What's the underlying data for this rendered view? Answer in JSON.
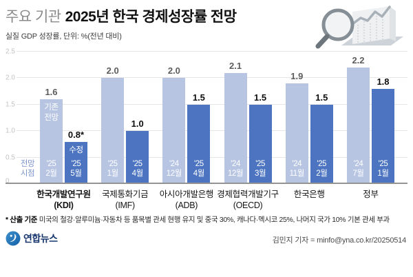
{
  "header": {
    "title_prefix": "주요 기관",
    "title_main": "2025년 한국 경제성장률 전망",
    "subtitle": "실질 GDP 성장률, 단위: %(전년 대비)"
  },
  "chart_data": {
    "type": "bar",
    "title": "주요 기관 2025년 한국 경제성장률 전망",
    "subtitle": "실질 GDP 성장률, 단위: %(전년 대비)",
    "ylim": [
      0,
      2.5
    ],
    "y_ticks": [
      0,
      0.5,
      1.0,
      1.5,
      2.0,
      2.5
    ],
    "grid": true,
    "axis_note_lines": [
      "전망",
      "시점"
    ],
    "legend": {
      "previous": "기존 전망",
      "revised": "수정"
    },
    "colors": {
      "previous": "#b7c5e3",
      "revised": "#4c74c0",
      "axis_note": "#7b95cc",
      "value_light": "#5c5c5c",
      "value_dark": "#0d0d0d"
    },
    "groups": [
      {
        "institution": "한국개발연구원",
        "abbr": "(KDI)",
        "highlight": true,
        "bars": [
          {
            "style": "previous",
            "value": 1.6,
            "value_label": "1.6",
            "tag_lines": [
              "기존",
              "전망"
            ],
            "date_lines": [
              "'25",
              "2월"
            ]
          },
          {
            "style": "revised",
            "value": 0.8,
            "value_label": "0.8*",
            "tag_lines": [
              "수정"
            ],
            "date_lines": [
              "'25",
              "5월"
            ]
          }
        ]
      },
      {
        "institution": "국제통화기금",
        "abbr": "(IMF)",
        "highlight": false,
        "bars": [
          {
            "style": "previous",
            "value": 2.0,
            "value_label": "2.0",
            "date_lines": [
              "'25",
              "1월"
            ]
          },
          {
            "style": "revised",
            "value": 1.0,
            "value_label": "1.0",
            "date_lines": [
              "'25",
              "4월"
            ]
          }
        ]
      },
      {
        "institution": "아시아개발은행",
        "abbr": "(ADB)",
        "highlight": false,
        "bars": [
          {
            "style": "previous",
            "value": 2.0,
            "value_label": "2.0",
            "date_lines": [
              "'24",
              "12월"
            ]
          },
          {
            "style": "revised",
            "value": 1.5,
            "value_label": "1.5",
            "date_lines": [
              "'25",
              "4월"
            ]
          }
        ]
      },
      {
        "institution": "경제협력개발기구",
        "abbr": "(OECD)",
        "highlight": false,
        "bars": [
          {
            "style": "previous",
            "value": 2.1,
            "value_label": "2.1",
            "date_lines": [
              "'24",
              "12월"
            ]
          },
          {
            "style": "revised",
            "value": 1.5,
            "value_label": "1.5",
            "date_lines": [
              "'25",
              "3월"
            ]
          }
        ]
      },
      {
        "institution": "한국은행",
        "abbr": "",
        "highlight": false,
        "bars": [
          {
            "style": "previous",
            "value": 1.9,
            "value_label": "1.9",
            "date_lines": [
              "'24",
              "11월"
            ]
          },
          {
            "style": "revised",
            "value": 1.5,
            "value_label": "1.5",
            "date_lines": [
              "'25",
              "2월"
            ]
          }
        ]
      },
      {
        "institution": "정부",
        "abbr": "",
        "highlight": false,
        "bars": [
          {
            "style": "previous",
            "value": 2.2,
            "value_label": "2.2",
            "date_lines": [
              "'24",
              "7월"
            ]
          },
          {
            "style": "revised",
            "value": 1.8,
            "value_label": "1.8",
            "date_lines": [
              "'25",
              "1월"
            ]
          }
        ]
      }
    ]
  },
  "footnote": {
    "prefix": "* 산출 기준",
    "text": " 미국의 철강·알루미늄·자동차 등 품목별 관세 현행 유지 및 중국 30%, 캐나다·멕시코 25%, 나머지 국가 10% 기본 관세 부과"
  },
  "footer": {
    "brand": "연합뉴스",
    "brand_color": "#16356e",
    "credit": "김민지 기자 = minfo@yna.co.kr/20250514"
  }
}
